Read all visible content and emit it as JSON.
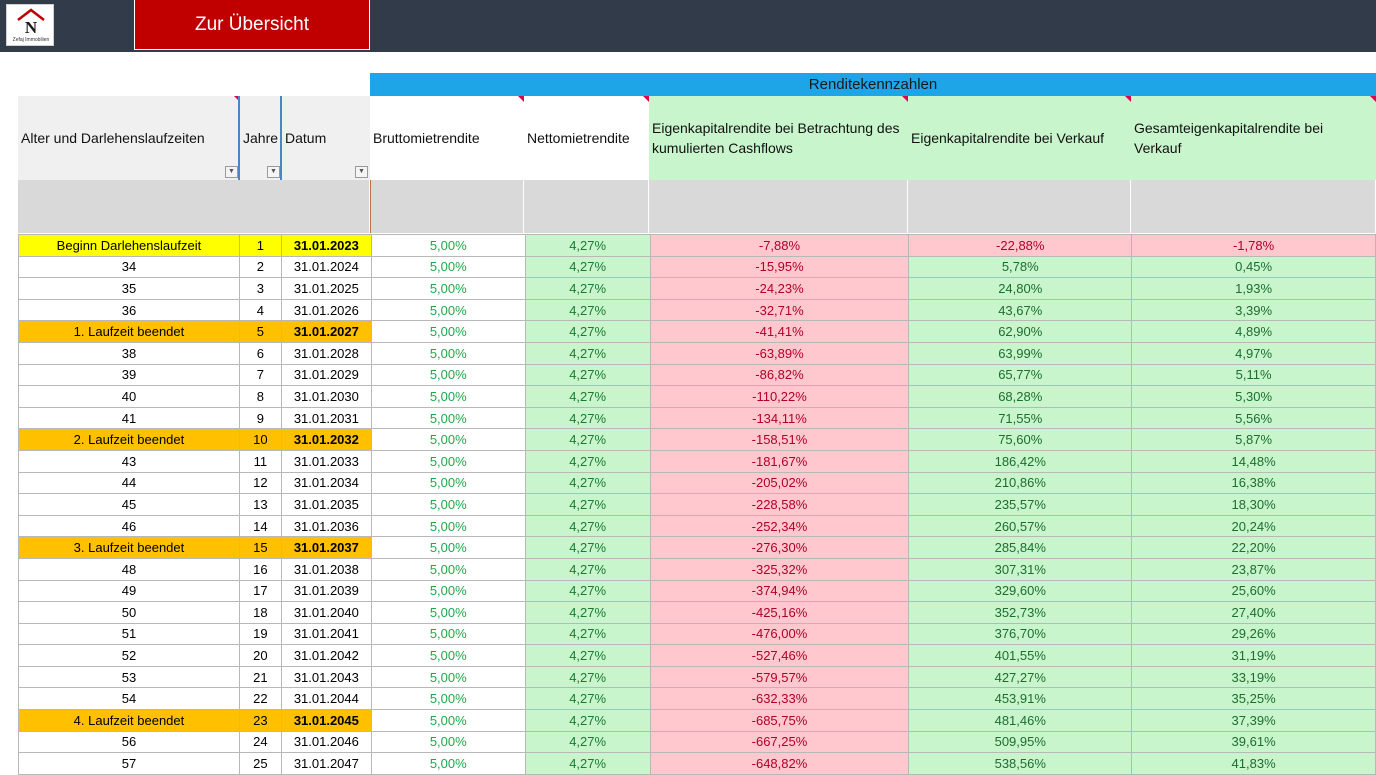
{
  "logo": {
    "text": "Zefaj Immobilien"
  },
  "nav": {
    "overview_label": "Zur Übersicht"
  },
  "group_header": "Renditekennzahlen",
  "columns": [
    "Alter und Darlehenslaufzeiten",
    "Jahre",
    "Datum",
    "Bruttomietrendite",
    "Nettomietrendite",
    "Eigenkapitalrendite bei Betrachtung des kumulierten Cashflows",
    "Eigenkapitalrendite bei Verkauf",
    "Gesamteigenkapitalrendite bei Verkauf"
  ],
  "rows": [
    {
      "age": "Beginn Darlehenslaufzeit",
      "year": "1",
      "date": "31.01.2023",
      "brutto": "5,00%",
      "netto": "4,27%",
      "ek_cf": "-7,88%",
      "ek_verkauf": "-22,88%",
      "ges": "-1,78%",
      "hl": "yellow"
    },
    {
      "age": "34",
      "year": "2",
      "date": "31.01.2024",
      "brutto": "5,00%",
      "netto": "4,27%",
      "ek_cf": "-15,95%",
      "ek_verkauf": "5,78%",
      "ges": "0,45%",
      "hl": ""
    },
    {
      "age": "35",
      "year": "3",
      "date": "31.01.2025",
      "brutto": "5,00%",
      "netto": "4,27%",
      "ek_cf": "-24,23%",
      "ek_verkauf": "24,80%",
      "ges": "1,93%",
      "hl": ""
    },
    {
      "age": "36",
      "year": "4",
      "date": "31.01.2026",
      "brutto": "5,00%",
      "netto": "4,27%",
      "ek_cf": "-32,71%",
      "ek_verkauf": "43,67%",
      "ges": "3,39%",
      "hl": ""
    },
    {
      "age": "1. Laufzeit beendet",
      "year": "5",
      "date": "31.01.2027",
      "brutto": "5,00%",
      "netto": "4,27%",
      "ek_cf": "-41,41%",
      "ek_verkauf": "62,90%",
      "ges": "4,89%",
      "hl": "orange"
    },
    {
      "age": "38",
      "year": "6",
      "date": "31.01.2028",
      "brutto": "5,00%",
      "netto": "4,27%",
      "ek_cf": "-63,89%",
      "ek_verkauf": "63,99%",
      "ges": "4,97%",
      "hl": ""
    },
    {
      "age": "39",
      "year": "7",
      "date": "31.01.2029",
      "brutto": "5,00%",
      "netto": "4,27%",
      "ek_cf": "-86,82%",
      "ek_verkauf": "65,77%",
      "ges": "5,11%",
      "hl": ""
    },
    {
      "age": "40",
      "year": "8",
      "date": "31.01.2030",
      "brutto": "5,00%",
      "netto": "4,27%",
      "ek_cf": "-110,22%",
      "ek_verkauf": "68,28%",
      "ges": "5,30%",
      "hl": ""
    },
    {
      "age": "41",
      "year": "9",
      "date": "31.01.2031",
      "brutto": "5,00%",
      "netto": "4,27%",
      "ek_cf": "-134,11%",
      "ek_verkauf": "71,55%",
      "ges": "5,56%",
      "hl": ""
    },
    {
      "age": "2. Laufzeit beendet",
      "year": "10",
      "date": "31.01.2032",
      "brutto": "5,00%",
      "netto": "4,27%",
      "ek_cf": "-158,51%",
      "ek_verkauf": "75,60%",
      "ges": "5,87%",
      "hl": "orange"
    },
    {
      "age": "43",
      "year": "11",
      "date": "31.01.2033",
      "brutto": "5,00%",
      "netto": "4,27%",
      "ek_cf": "-181,67%",
      "ek_verkauf": "186,42%",
      "ges": "14,48%",
      "hl": ""
    },
    {
      "age": "44",
      "year": "12",
      "date": "31.01.2034",
      "brutto": "5,00%",
      "netto": "4,27%",
      "ek_cf": "-205,02%",
      "ek_verkauf": "210,86%",
      "ges": "16,38%",
      "hl": ""
    },
    {
      "age": "45",
      "year": "13",
      "date": "31.01.2035",
      "brutto": "5,00%",
      "netto": "4,27%",
      "ek_cf": "-228,58%",
      "ek_verkauf": "235,57%",
      "ges": "18,30%",
      "hl": ""
    },
    {
      "age": "46",
      "year": "14",
      "date": "31.01.2036",
      "brutto": "5,00%",
      "netto": "4,27%",
      "ek_cf": "-252,34%",
      "ek_verkauf": "260,57%",
      "ges": "20,24%",
      "hl": ""
    },
    {
      "age": "3. Laufzeit beendet",
      "year": "15",
      "date": "31.01.2037",
      "brutto": "5,00%",
      "netto": "4,27%",
      "ek_cf": "-276,30%",
      "ek_verkauf": "285,84%",
      "ges": "22,20%",
      "hl": "orange"
    },
    {
      "age": "48",
      "year": "16",
      "date": "31.01.2038",
      "brutto": "5,00%",
      "netto": "4,27%",
      "ek_cf": "-325,32%",
      "ek_verkauf": "307,31%",
      "ges": "23,87%",
      "hl": ""
    },
    {
      "age": "49",
      "year": "17",
      "date": "31.01.2039",
      "brutto": "5,00%",
      "netto": "4,27%",
      "ek_cf": "-374,94%",
      "ek_verkauf": "329,60%",
      "ges": "25,60%",
      "hl": ""
    },
    {
      "age": "50",
      "year": "18",
      "date": "31.01.2040",
      "brutto": "5,00%",
      "netto": "4,27%",
      "ek_cf": "-425,16%",
      "ek_verkauf": "352,73%",
      "ges": "27,40%",
      "hl": ""
    },
    {
      "age": "51",
      "year": "19",
      "date": "31.01.2041",
      "brutto": "5,00%",
      "netto": "4,27%",
      "ek_cf": "-476,00%",
      "ek_verkauf": "376,70%",
      "ges": "29,26%",
      "hl": ""
    },
    {
      "age": "52",
      "year": "20",
      "date": "31.01.2042",
      "brutto": "5,00%",
      "netto": "4,27%",
      "ek_cf": "-527,46%",
      "ek_verkauf": "401,55%",
      "ges": "31,19%",
      "hl": ""
    },
    {
      "age": "53",
      "year": "21",
      "date": "31.01.2043",
      "brutto": "5,00%",
      "netto": "4,27%",
      "ek_cf": "-579,57%",
      "ek_verkauf": "427,27%",
      "ges": "33,19%",
      "hl": ""
    },
    {
      "age": "54",
      "year": "22",
      "date": "31.01.2044",
      "brutto": "5,00%",
      "netto": "4,27%",
      "ek_cf": "-632,33%",
      "ek_verkauf": "453,91%",
      "ges": "35,25%",
      "hl": ""
    },
    {
      "age": "4. Laufzeit beendet",
      "year": "23",
      "date": "31.01.2045",
      "brutto": "5,00%",
      "netto": "4,27%",
      "ek_cf": "-685,75%",
      "ek_verkauf": "481,46%",
      "ges": "37,39%",
      "hl": "orange"
    },
    {
      "age": "56",
      "year": "24",
      "date": "31.01.2046",
      "brutto": "5,00%",
      "netto": "4,27%",
      "ek_cf": "-667,25%",
      "ek_verkauf": "509,95%",
      "ges": "39,61%",
      "hl": ""
    },
    {
      "age": "57",
      "year": "25",
      "date": "31.01.2047",
      "brutto": "5,00%",
      "netto": "4,27%",
      "ek_cf": "-648,82%",
      "ek_verkauf": "538,56%",
      "ges": "41,83%",
      "hl": ""
    }
  ],
  "colors": {
    "topbar": "#323b49",
    "overview_button": "#c00000",
    "group_header": "#1ea5e8",
    "positive_fill": "#c9f5cc",
    "negative_fill": "#ffc7ce",
    "start_highlight": "#ffff00",
    "term_end_highlight": "#ffc000"
  }
}
